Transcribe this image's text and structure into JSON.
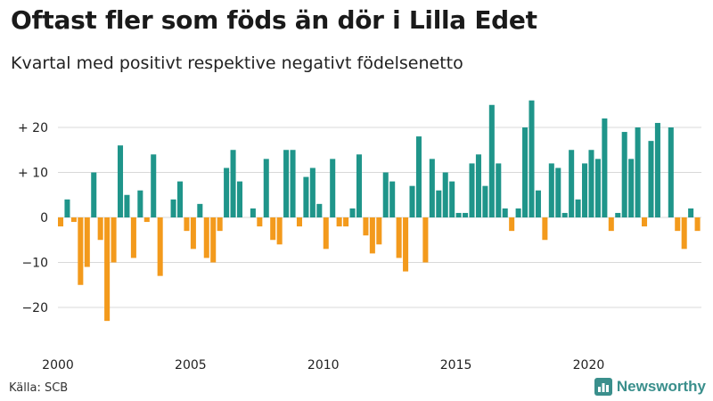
{
  "header": {
    "title": "Oftast fler som föds än dör i Lilla Edet",
    "subtitle": "Kvartal med positivt respektive negativt födelsenetto"
  },
  "footer": {
    "source": "Källa: SCB",
    "brand": "Newsworthy"
  },
  "colors": {
    "positive": "#1f958a",
    "negative": "#f39a1c",
    "grid": "#d9d9d9",
    "logo": "#3a8f8c"
  },
  "chart_data": {
    "type": "bar",
    "title": "Oftast fler som föds än dör i Lilla Edet",
    "subtitle": "Kvartal med positivt respektive negativt födelsenetto",
    "xlabel": "",
    "ylabel": "",
    "ylim": [
      -27,
      28
    ],
    "yticks": [
      {
        "value": 20,
        "label": "+ 20"
      },
      {
        "value": 10,
        "label": "+ 10"
      },
      {
        "value": 0,
        "label": "0"
      },
      {
        "value": -10,
        "label": "−10"
      },
      {
        "value": -20,
        "label": "−20"
      }
    ],
    "xticks": [
      {
        "index": 0,
        "label": "2000"
      },
      {
        "index": 20,
        "label": "2005"
      },
      {
        "index": 40,
        "label": "2010"
      },
      {
        "index": 60,
        "label": "2015"
      },
      {
        "index": 80,
        "label": "2020"
      }
    ],
    "start": "2000 Q1",
    "values": [
      -2,
      4,
      -1,
      -15,
      -11,
      10,
      -5,
      -23,
      -10,
      16,
      5,
      -9,
      6,
      -1,
      14,
      -13,
      0,
      4,
      8,
      -3,
      -7,
      3,
      -9,
      -10,
      -3,
      11,
      15,
      8,
      0,
      2,
      -2,
      13,
      -5,
      -6,
      15,
      15,
      -2,
      9,
      11,
      3,
      -7,
      13,
      -2,
      -2,
      2,
      14,
      -4,
      -8,
      -6,
      10,
      8,
      -9,
      -12,
      7,
      18,
      -10,
      13,
      6,
      10,
      8,
      1,
      1,
      12,
      14,
      7,
      25,
      12,
      2,
      -3,
      2,
      20,
      26,
      6,
      -5,
      12,
      11,
      1,
      15,
      4,
      12,
      15,
      13,
      22,
      -3,
      1,
      19,
      13,
      20,
      -2,
      17,
      21,
      0,
      20,
      -3,
      -7,
      2,
      -3
    ]
  }
}
